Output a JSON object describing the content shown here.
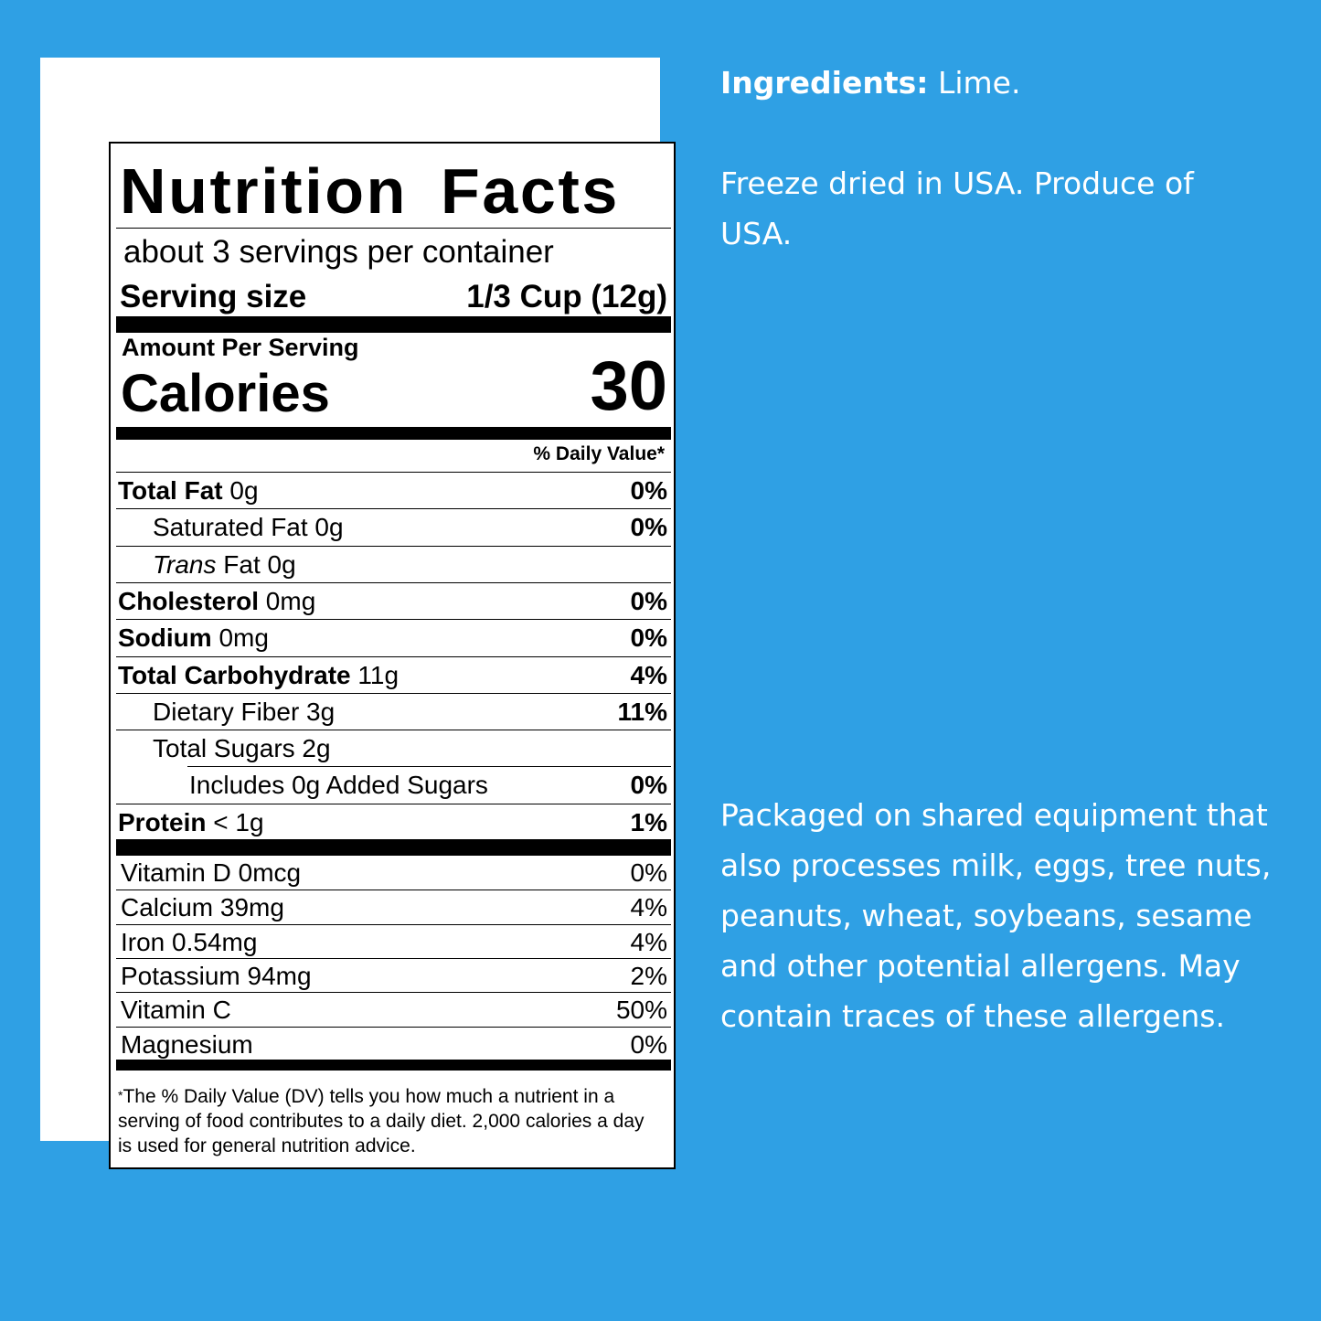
{
  "colors": {
    "background": "#2fa0e4",
    "panel": "#ffffff",
    "text_side": "#ffffff"
  },
  "label": {
    "title": "Nutrition Facts",
    "servings": "about 3 servings per container",
    "serving_size_label": "Serving size",
    "serving_size_value": "1/3 Cup (12g)",
    "amount_per_serving": "Amount Per Serving",
    "calories_label": "Calories",
    "calories_value": "30",
    "dv_header": "% Daily Value*",
    "nutrients": [
      {
        "bold": "Total Fat",
        "rest": " 0g",
        "dv": "0%",
        "indent": 0
      },
      {
        "bold": "",
        "rest": "Saturated Fat 0g",
        "dv": "0%",
        "indent": 1
      },
      {
        "italic": "Trans",
        "rest": " Fat 0g",
        "dv": "",
        "indent": 1
      },
      {
        "bold": "Cholesterol",
        "rest": " 0mg",
        "dv": "0%",
        "indent": 0
      },
      {
        "bold": "Sodium",
        "rest": " 0mg",
        "dv": "0%",
        "indent": 0
      },
      {
        "bold": "Total Carbohydrate",
        "rest": " 11g",
        "dv": "4%",
        "indent": 0
      },
      {
        "bold": "",
        "rest": "Dietary Fiber 3g",
        "dv": "11%",
        "indent": 1
      },
      {
        "bold": "",
        "rest": "Total Sugars 2g",
        "dv": "",
        "indent": 1
      },
      {
        "bold": "",
        "rest": "Includes 0g Added Sugars",
        "dv": "0%",
        "indent": 2
      },
      {
        "bold": "Protein",
        "rest": " < 1g",
        "dv": "1%",
        "indent": 0
      }
    ],
    "vitamins": [
      {
        "name": "Vitamin D 0mcg",
        "dv": "0%"
      },
      {
        "name": "Calcium 39mg",
        "dv": "4%"
      },
      {
        "name": "Iron 0.54mg",
        "dv": "4%"
      },
      {
        "name": "Potassium 94mg",
        "dv": "2%"
      },
      {
        "name": "Vitamin C",
        "dv": "50%"
      },
      {
        "name": "Magnesium",
        "dv": "0%"
      }
    ],
    "footnote_star": "*",
    "footnote": "The % Daily Value (DV) tells you how much a nutrient in a serving of food contributes to a daily diet. 2,000 calories a day is used for general nutrition advice."
  },
  "side": {
    "ingredients_label": "Ingredients:",
    "ingredients_value": " Lime.",
    "origin": "Freeze dried in USA. Produce of USA.",
    "allergens": "Packaged on shared equipment that also processes milk, eggs, tree nuts, peanuts, wheat, soybeans, sesame and other potential allergens. May contain traces of these allergens."
  }
}
